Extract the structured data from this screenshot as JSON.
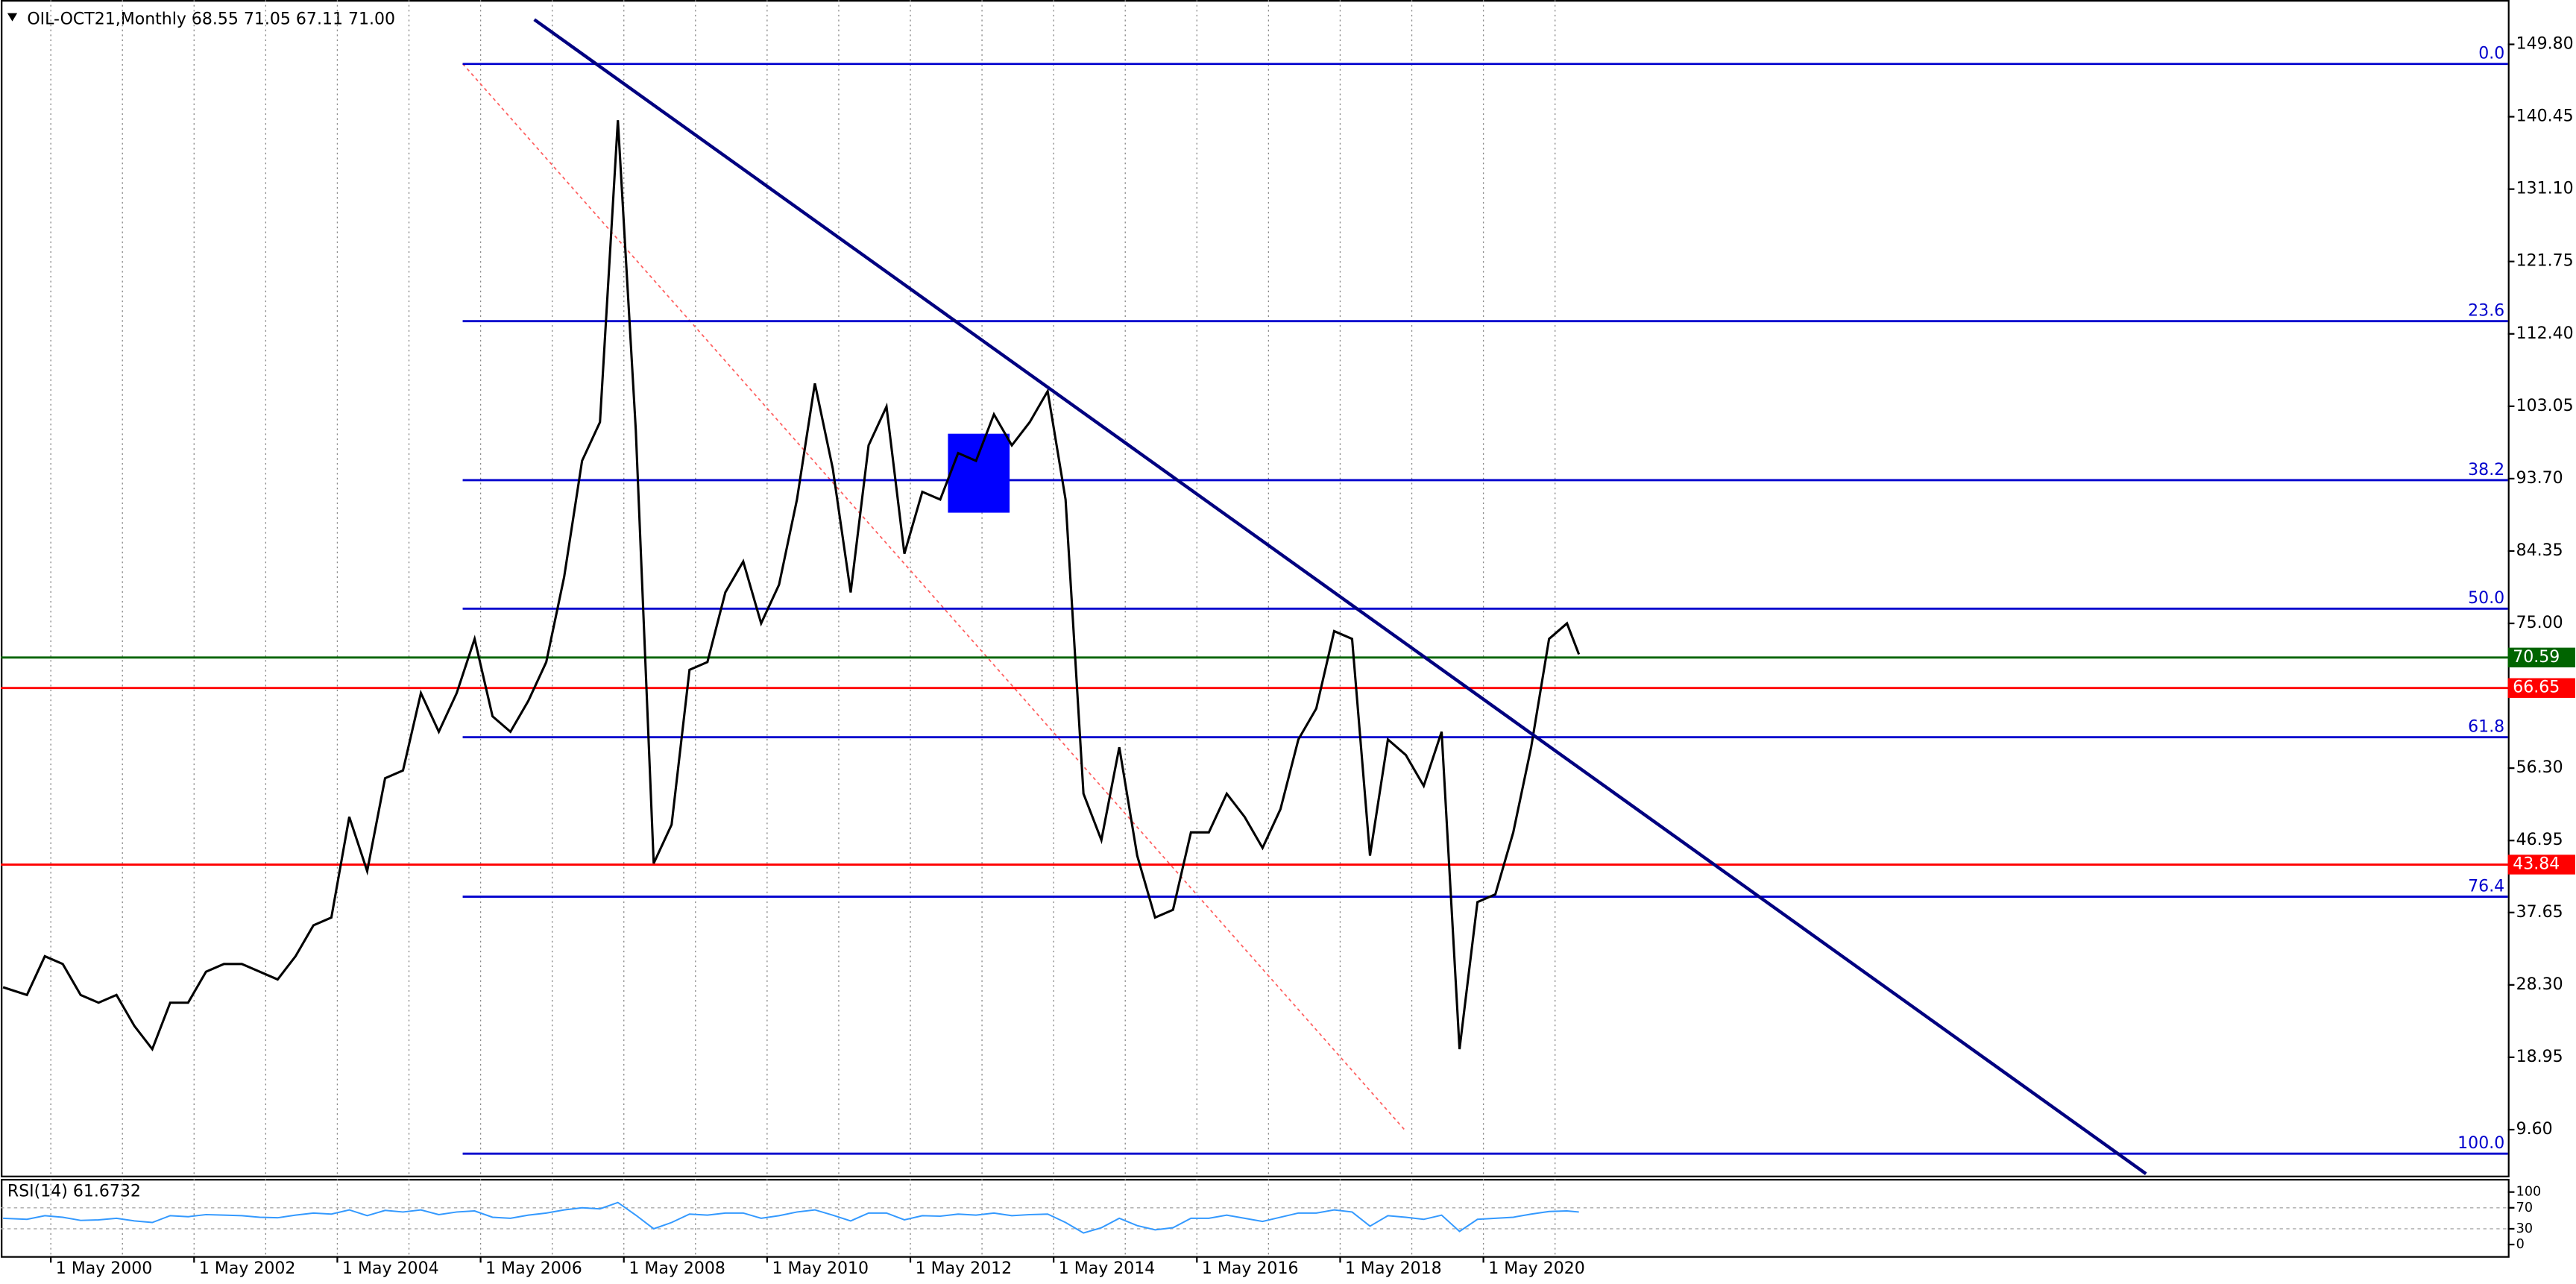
{
  "chart_data": {
    "type": "line",
    "title": "OIL-OCT21,Monthly  68.55 71.05 67.11 71.00",
    "xlim": [
      "1999-08-20",
      "2034-08-20"
    ],
    "ylim": [
      3.66,
      155.53
    ],
    "yticks": [
      {
        "value": 149.8,
        "label": "149.80"
      },
      {
        "value": 140.45,
        "label": "140.45"
      },
      {
        "value": 131.1,
        "label": "131.10"
      },
      {
        "value": 121.75,
        "label": "121.75"
      },
      {
        "value": 112.4,
        "label": "112.40"
      },
      {
        "value": 103.05,
        "label": "103.05"
      },
      {
        "value": 93.7,
        "label": "93.70"
      },
      {
        "value": 84.35,
        "label": "84.35"
      },
      {
        "value": 75,
        "label": "75.00"
      },
      {
        "value": 56.3,
        "label": "56.30"
      },
      {
        "value": 46.95,
        "label": "46.95"
      },
      {
        "value": 37.65,
        "label": "37.65"
      },
      {
        "value": 28.3,
        "label": "28.30"
      },
      {
        "value": 18.95,
        "label": "18.95"
      },
      {
        "value": 9.6,
        "label": "9.60"
      }
    ],
    "xticks": [
      {
        "value": "2000-05-01",
        "label": "1 May 2000"
      },
      {
        "value": "2002-05-01",
        "label": "1 May 2002"
      },
      {
        "value": "2004-05-01",
        "label": "1 May 2004"
      },
      {
        "value": "2006-05-01",
        "label": "1 May 2006"
      },
      {
        "value": "2008-05-01",
        "label": "1 May 2008"
      },
      {
        "value": "2010-05-01",
        "label": "1 May 2010"
      },
      {
        "value": "2012-05-01",
        "label": "1 May 2012"
      },
      {
        "value": "2014-05-01",
        "label": "1 May 2014"
      },
      {
        "value": "2016-05-01",
        "label": "1 May 2016"
      },
      {
        "value": "2018-05-01",
        "label": "1 May 2018"
      },
      {
        "value": "2020-05-01",
        "label": "1 May 2020"
      }
    ],
    "xgrid": [
      "2000-05-01",
      "2001-05-01",
      "2002-05-01",
      "2003-05-01",
      "2004-05-01",
      "2005-05-01",
      "2006-05-01",
      "2007-05-01",
      "2008-05-01",
      "2009-05-01",
      "2010-05-01",
      "2011-05-01",
      "2012-05-01",
      "2013-05-01",
      "2014-05-01",
      "2015-05-01",
      "2016-05-01",
      "2017-05-01",
      "2018-05-01",
      "2019-05-01",
      "2020-05-01",
      "2021-05-01"
    ],
    "x": [
      "1999-09",
      "2000-01",
      "2000-04",
      "2000-07",
      "2000-10",
      "2001-01",
      "2001-04",
      "2001-07",
      "2001-10",
      "2002-01",
      "2002-04",
      "2002-07",
      "2002-10",
      "2003-01",
      "2003-04",
      "2003-07",
      "2003-10",
      "2004-01",
      "2004-04",
      "2004-07",
      "2004-10",
      "2005-01",
      "2005-04",
      "2005-07",
      "2005-10",
      "2006-01",
      "2006-04",
      "2006-07",
      "2006-10",
      "2007-01",
      "2007-04",
      "2007-07",
      "2007-10",
      "2008-01",
      "2008-04",
      "2008-07",
      "2008-10",
      "2009-01",
      "2009-04",
      "2009-07",
      "2009-10",
      "2010-01",
      "2010-04",
      "2010-07",
      "2010-10",
      "2011-01",
      "2011-04",
      "2011-07",
      "2011-10",
      "2012-01",
      "2012-04",
      "2012-07",
      "2012-10",
      "2013-01",
      "2013-04",
      "2013-07",
      "2013-10",
      "2014-01",
      "2014-04",
      "2014-07",
      "2014-10",
      "2015-01",
      "2015-04",
      "2015-07",
      "2015-10",
      "2016-01",
      "2016-04",
      "2016-07",
      "2016-10",
      "2017-01",
      "2017-04",
      "2017-07",
      "2017-10",
      "2018-01",
      "2018-04",
      "2018-07",
      "2018-10",
      "2019-01",
      "2019-04",
      "2019-07",
      "2019-10",
      "2020-01",
      "2020-04",
      "2020-07",
      "2020-10",
      "2021-01",
      "2021-04",
      "2021-07",
      "2021-09"
    ],
    "series": [
      {
        "name": "OIL-OCT21",
        "color": "#000000",
        "values": [
          28,
          27,
          32,
          31,
          27,
          26,
          27,
          23,
          20,
          26,
          26,
          30,
          31,
          31,
          30,
          29,
          32,
          36,
          37,
          50,
          43,
          55,
          56,
          66,
          61,
          66,
          73,
          63,
          61,
          65,
          70,
          81,
          96,
          101,
          140,
          100,
          44,
          49,
          69,
          70,
          79,
          83,
          75,
          80,
          91,
          106,
          95,
          79,
          98,
          103,
          84,
          92,
          91,
          97,
          96,
          102,
          98,
          101,
          105,
          91,
          53,
          47,
          59,
          45,
          37,
          38,
          48,
          48,
          53,
          50,
          46,
          51,
          60,
          64,
          74,
          73,
          45,
          60,
          58,
          54,
          61,
          20,
          39,
          40,
          48,
          59,
          73,
          75,
          71
        ]
      }
    ],
    "fib_start": "2006-02-01",
    "fib_color": "#0000cd",
    "fib_levels": [
      {
        "label": "0.0",
        "value": 147.27
      },
      {
        "label": "23.6",
        "value": 114.05
      },
      {
        "label": "38.2",
        "value": 93.5
      },
      {
        "label": "50.0",
        "value": 76.9
      },
      {
        "label": "61.8",
        "value": 60.3
      },
      {
        "label": "76.4",
        "value": 39.7
      },
      {
        "label": "100.0",
        "value": 6.5
      }
    ],
    "price_lines": [
      {
        "value": 70.59,
        "color": "#006400"
      },
      {
        "value": 66.65,
        "color": "#ff0000"
      },
      {
        "value": 43.84,
        "color": "#ff0000"
      }
    ],
    "trendline": {
      "x": [
        "2007-02-01",
        "2029-08-01"
      ],
      "y": [
        153.0,
        3.9
      ],
      "color": "#000080"
    },
    "fib_diagonal": {
      "x": [
        "2006-02-01",
        "2019-04-01"
      ],
      "y": [
        147.3,
        9.4
      ],
      "color": "#ff6060"
    },
    "rectangle": {
      "x": [
        "2012-11-10",
        "2013-09-20"
      ],
      "y": [
        99.5,
        89.3
      ],
      "color": "#0000ff"
    },
    "rsi": {
      "label": "RSI(14) 61.6732",
      "color": "#3399ff",
      "ylim": [
        -22,
        125
      ],
      "yticks": [
        0,
        30,
        70,
        100
      ],
      "levels": [
        30,
        70
      ],
      "values": [
        50,
        48,
        55,
        52,
        46,
        47,
        50,
        45,
        42,
        55,
        53,
        57,
        56,
        55,
        52,
        51,
        56,
        60,
        58,
        66,
        55,
        65,
        62,
        66,
        57,
        62,
        64,
        52,
        50,
        56,
        60,
        66,
        70,
        68,
        80,
        56,
        30,
        42,
        58,
        56,
        60,
        60,
        50,
        55,
        62,
        66,
        56,
        45,
        60,
        60,
        47,
        55,
        54,
        58,
        56,
        60,
        55,
        57,
        58,
        42,
        22,
        32,
        50,
        36,
        28,
        32,
        50,
        50,
        56,
        50,
        44,
        52,
        60,
        60,
        66,
        62,
        35,
        55,
        52,
        48,
        56,
        25,
        48,
        50,
        52,
        58,
        63,
        64,
        62
      ]
    }
  }
}
